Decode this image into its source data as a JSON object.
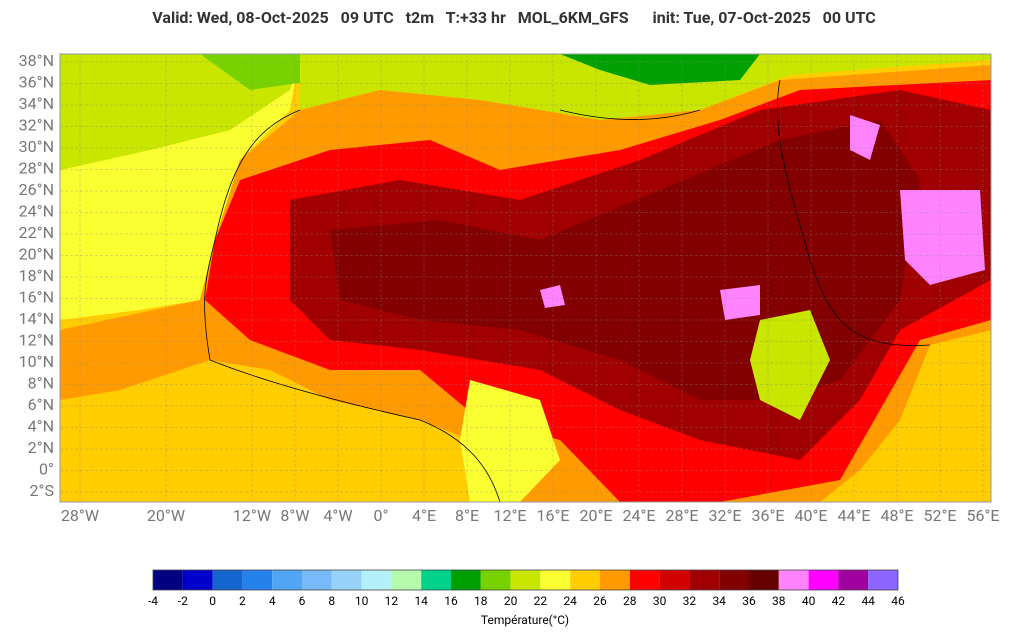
{
  "header": {
    "title": "Valid: Wed, 08-Oct-2025   09 UTC   t2m   T:+33 hr   MOL_6KM_GFS      init: Tue, 07-Oct-2025   00 UTC"
  },
  "map": {
    "lat_labels": [
      {
        "value": 38,
        "label": "38°N"
      },
      {
        "value": 36,
        "label": "36°N"
      },
      {
        "value": 34,
        "label": "34°N"
      },
      {
        "value": 32,
        "label": "32°N"
      },
      {
        "value": 30,
        "label": "30°N"
      },
      {
        "value": 28,
        "label": "28°N"
      },
      {
        "value": 26,
        "label": "26°N"
      },
      {
        "value": 24,
        "label": "24°N"
      },
      {
        "value": 22,
        "label": "22°N"
      },
      {
        "value": 20,
        "label": "20°N"
      },
      {
        "value": 18,
        "label": "18°N"
      },
      {
        "value": 16,
        "label": "16°N"
      },
      {
        "value": 14,
        "label": "14°N"
      },
      {
        "value": 12,
        "label": "12°N"
      },
      {
        "value": 10,
        "label": "10°N"
      },
      {
        "value": 8,
        "label": "8°N"
      },
      {
        "value": 6,
        "label": "6°N"
      },
      {
        "value": 4,
        "label": "4°N"
      },
      {
        "value": 2,
        "label": "2°N"
      },
      {
        "value": 0,
        "label": "0°"
      },
      {
        "value": -2,
        "label": "2°S"
      }
    ],
    "lon_labels": [
      {
        "value": -28,
        "label": "28°W"
      },
      {
        "value": -20,
        "label": "20°W"
      },
      {
        "value": -12,
        "label": "12°W"
      },
      {
        "value": -8,
        "label": "8°W"
      },
      {
        "value": -4,
        "label": "4°W"
      },
      {
        "value": 0,
        "label": "0°"
      },
      {
        "value": 4,
        "label": "4°E"
      },
      {
        "value": 8,
        "label": "8°E"
      },
      {
        "value": 12,
        "label": "12°E"
      },
      {
        "value": 16,
        "label": "16°E"
      },
      {
        "value": 20,
        "label": "20°E"
      },
      {
        "value": 24,
        "label": "24°E"
      },
      {
        "value": 28,
        "label": "28°E"
      },
      {
        "value": 32,
        "label": "32°E"
      },
      {
        "value": 36,
        "label": "36°E"
      },
      {
        "value": 40,
        "label": "40°E"
      },
      {
        "value": 44,
        "label": "44°E"
      },
      {
        "value": 48,
        "label": "48°E"
      },
      {
        "value": 52,
        "label": "52°E"
      },
      {
        "value": 56,
        "label": "56°E"
      }
    ]
  },
  "colorbar": {
    "title": "Température(°C)",
    "ticks": [
      -4,
      -2,
      0,
      2,
      4,
      6,
      8,
      10,
      12,
      14,
      16,
      18,
      20,
      22,
      24,
      26,
      28,
      30,
      32,
      34,
      36,
      38,
      40,
      42,
      44,
      46
    ],
    "colors": [
      "#000082",
      "#0000cd",
      "#1565d0",
      "#2582ec",
      "#50a5f5",
      "#78b9fa",
      "#96d2fa",
      "#b4f0fa",
      "#b4faaa",
      "#00d28c",
      "#00a000",
      "#78d200",
      "#c8e600",
      "#faff32",
      "#ffcd00",
      "#ff9b00",
      "#ff0000",
      "#d20000",
      "#a00000",
      "#820000",
      "#640000",
      "#ff82ff",
      "#ff00ff",
      "#a000a0",
      "#8c64ff"
    ]
  }
}
